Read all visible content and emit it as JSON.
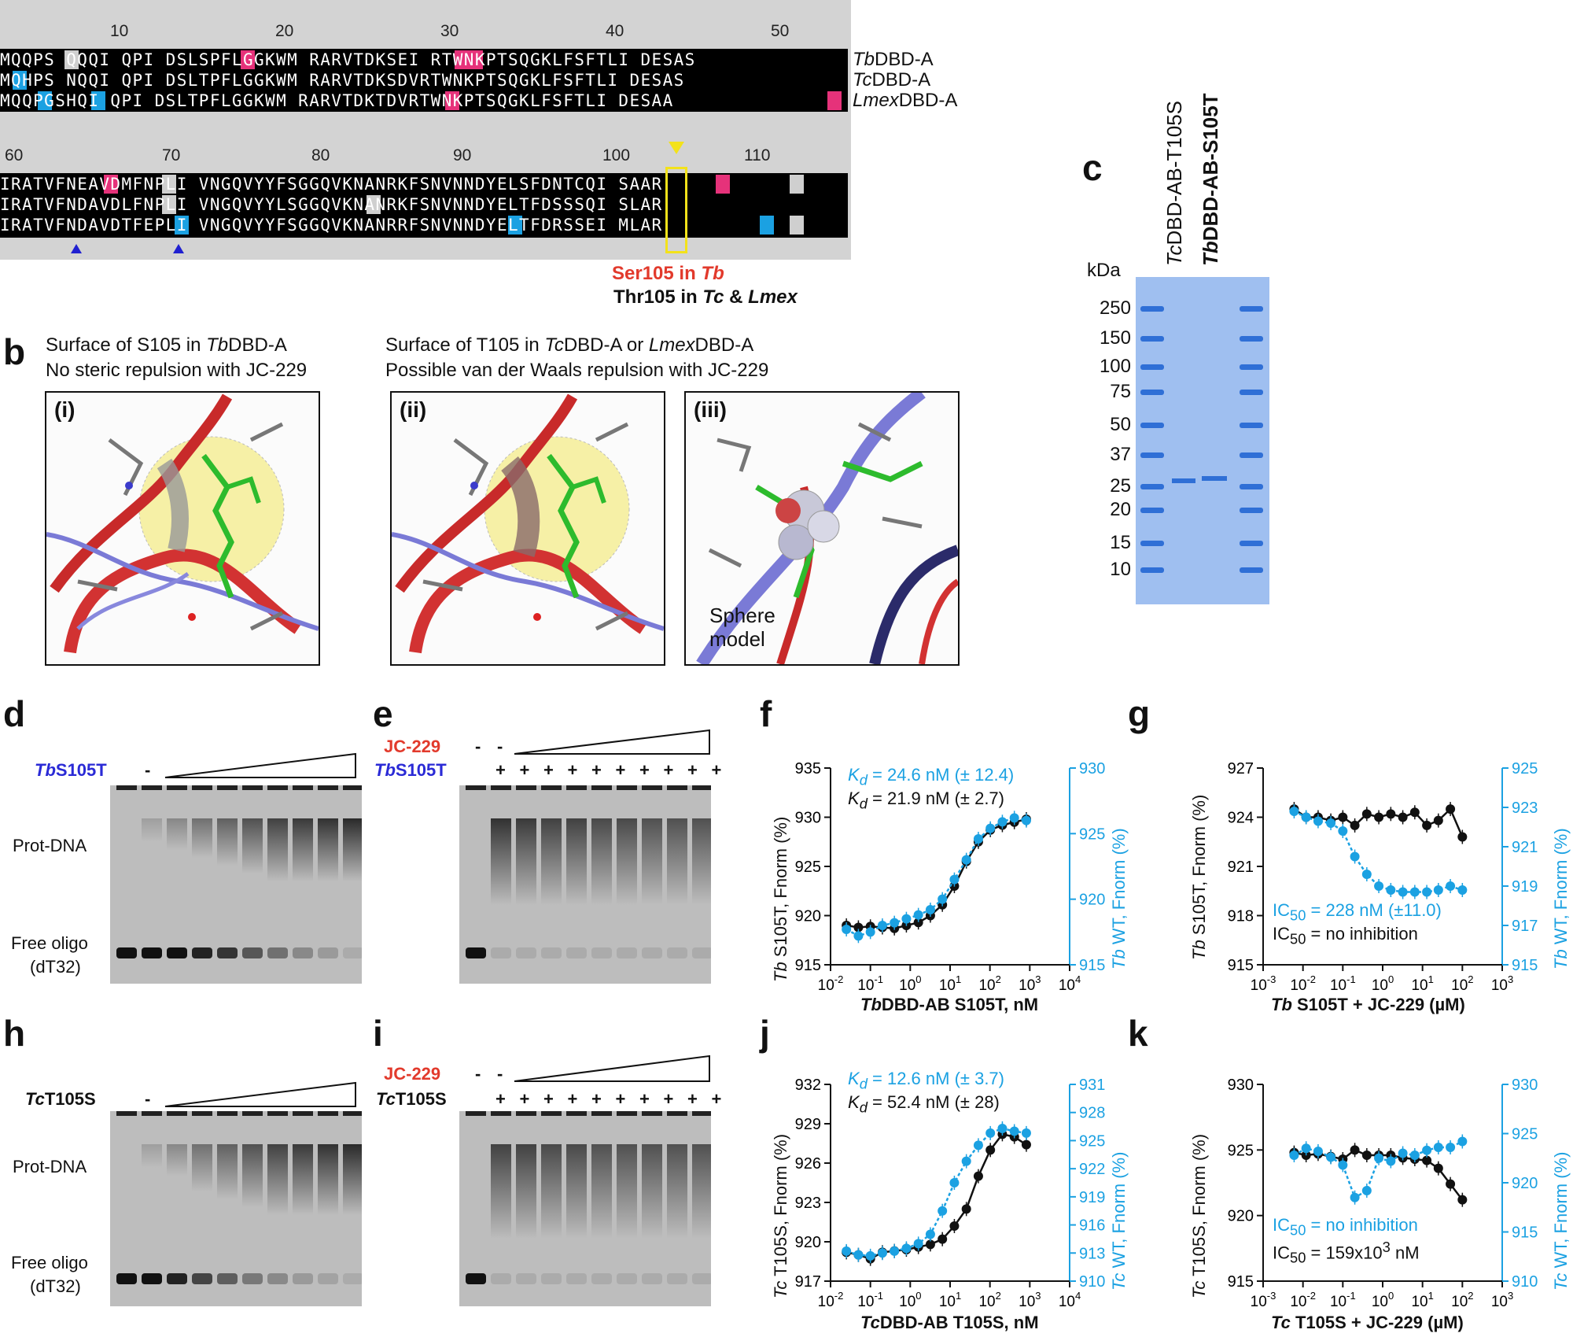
{
  "panel_labels": {
    "a": "a",
    "b": "b",
    "c": "c",
    "d": "d",
    "e": "e",
    "f": "f",
    "g": "g",
    "h": "h",
    "i": "i",
    "j": "j",
    "k": "k"
  },
  "panel_a": {
    "ruler_top": [
      "10",
      "20",
      "30",
      "40",
      "50"
    ],
    "ruler_bottom": [
      "60",
      "70",
      "80",
      "90",
      "100",
      "110"
    ],
    "block1": [
      {
        "seq": "MQQPS QQQI QPI DSLSPFLGGKWM RARVTDKSEI RTWNKPTSQGKLFSFTLI DESAS",
        "name_italic": "Tb",
        "name_rest": "DBD-A"
      },
      {
        "seq": "MQHPS NQQI QPI DSLTPFLGGKWM RARVTDKSDVRTWNKPTSQGKLFSFTLI DESAS",
        "name_italic": "Tc",
        "name_rest": "DBD-A"
      },
      {
        "seq": "MQQPGSHQI QPI DSLTPFLGGKWM RARVTDKTDVRTWNKPTSQGKLFSFTLI DESAA",
        "name_italic": "Lmex",
        "name_rest": "DBD-A"
      }
    ],
    "block2": [
      {
        "seq": "IRATVFNEAVDMFNPLI VNGQVYYFSGGQVKNANRKFSNVNNDYELSFDNTCQI SAAR"
      },
      {
        "seq": "IRATVFNDAVDLFNPLI VNGQVYYLSGGQVKNANRKFSNVNNDYELTFDSSSQI SLAR"
      },
      {
        "seq": "IRATVFNDAVDTFEPLI VNGQVYYFSGGQVKNANRRFSNVNNDYELTFDRSSEI MLAR"
      }
    ],
    "ser_label": "Ser105 in ",
    "ser_tb": "Tb",
    "thr_label": "Thr105 in ",
    "thr_tc": "Tc",
    "thr_amp": " & ",
    "thr_lmex": "Lmex"
  },
  "panel_b": {
    "cap1_line1_pre": "Surface of S105 in ",
    "cap1_line1_it": "Tb",
    "cap1_line1_post": "DBD-A",
    "cap1_line2": "No steric repulsion with JC-229",
    "cap2_line1_pre": "Surface of T105 in ",
    "cap2_line1_it1": "Tc",
    "cap2_line1_mid": "DBD-A or ",
    "cap2_line1_it2": "Lmex",
    "cap2_line1_post": "DBD-A",
    "cap2_line2": "Possible van der Waals repulsion with JC-229",
    "sub_i": "(i)",
    "sub_ii": "(ii)",
    "sub_iii": "(iii)",
    "sphere_1": "Sphere",
    "sphere_2": "model"
  },
  "panel_c": {
    "lane1_it": "Tc",
    "lane1_rest": "DBD-AB-T105S",
    "lane2_it": "Tb",
    "lane2_rest": "DBD-AB-S105T",
    "kda": "kDa",
    "markers": [
      "250",
      "150",
      "100",
      "75",
      "50",
      "37",
      "25",
      "20",
      "15",
      "10"
    ]
  },
  "panel_d": {
    "protein_it": "Tb",
    "protein_rest": "S105T",
    "dash": "-",
    "prot_dna": "Prot-DNA",
    "free1": "Free oligo",
    "free2": "(dT32)"
  },
  "panel_e": {
    "compound": "JC-229",
    "protein_it": "Tb",
    "protein_rest": "S105T",
    "dash": "-",
    "plus": "+"
  },
  "panel_h": {
    "protein_it": "Tc",
    "protein_rest": "T105S",
    "dash": "-",
    "prot_dna": "Prot-DNA",
    "free1": "Free oligo",
    "free2": "(dT32)"
  },
  "panel_i": {
    "compound": "JC-229",
    "protein_it": "Tc",
    "protein_rest": "T105S",
    "dash": "-",
    "plus": "+"
  },
  "panel_f": {
    "kd_blue_k": "K",
    "kd_blue_d": "d",
    "kd_blue_val": " = 24.6 nM (± 12.4)",
    "kd_black_k": "K",
    "kd_black_d": "d",
    "kd_black_val": " = 21.9 nM (± 2.7)",
    "ylabel_left_it": "Tb",
    "ylabel_left_rest": " S105T, Fnorm (%)",
    "ylabel_right_it": "Tb",
    "ylabel_right_rest": " WT, Fnorm (%)",
    "xlabel_it": "Tb",
    "xlabel_rest": "DBD-AB S105T, nM"
  },
  "panel_g": {
    "ic_blue": "IC",
    "ic_blue_sub": "50",
    "ic_blue_val": " = 228 nM (±11.0)",
    "ic_black": "IC",
    "ic_black_sub": "50",
    "ic_black_val": " = no inhibition",
    "ylabel_left_it": "Tb",
    "ylabel_left_rest": " S105T, Fnorm (%)",
    "ylabel_right_it": "Tb",
    "ylabel_right_rest": " WT, Fnorm (%)",
    "xlabel_it": "Tb",
    "xlabel_rest": " S105T + JC-229 (µM)"
  },
  "panel_j": {
    "kd_blue_k": "K",
    "kd_blue_d": "d",
    "kd_blue_val": " = 12.6 nM (± 3.7)",
    "kd_black_k": "K",
    "kd_black_d": "d",
    "kd_black_val": " = 52.4 nM (± 28)",
    "ylabel_left_it": "Tc",
    "ylabel_left_rest": " T105S, Fnorm (%)",
    "ylabel_right_it": "Tc",
    "ylabel_right_rest": " WT, Fnorm (%)",
    "xlabel_it": "Tc",
    "xlabel_rest": "DBD-AB T105S, nM"
  },
  "panel_k": {
    "ic_blue": "IC",
    "ic_blue_sub": "50",
    "ic_blue_val": " = no inhibition",
    "ic_black": "IC",
    "ic_black_sub": "50",
    "ic_black_val": " = 159x10",
    "ic_black_sup": "3",
    "ic_black_unit": " nM",
    "ylabel_left_it": "Tc",
    "ylabel_left_rest": " T105S, Fnorm (%)",
    "ylabel_right_it": "Tc",
    "ylabel_right_rest": " WT, Fnorm (%)",
    "xlabel_it": "Tc",
    "xlabel_rest": " T105S + JC-229 (µM)"
  },
  "colors": {
    "blue": "#1ba1e2",
    "black": "#111111",
    "pink": "#e6327a",
    "cyan": "#1ba1e2",
    "red": "#e23a2c",
    "navy": "#2a2ad6",
    "gel_blue": "#2f6fd6"
  },
  "chart_data": [
    {
      "id": "f",
      "type": "scatter",
      "title": "",
      "xscale": "log",
      "xlim": [
        0.01,
        10000
      ],
      "xticks": [
        "10-2",
        "10-1",
        "100",
        "101",
        "102",
        "103",
        "104"
      ],
      "ylim_left": [
        915,
        935
      ],
      "yticks_left": [
        "915",
        "920",
        "925",
        "930",
        "935"
      ],
      "ylim_right": [
        915,
        930
      ],
      "yticks_right": [
        "915",
        "920",
        "925",
        "930"
      ],
      "series": [
        {
          "name": "Tb S105T",
          "axis": "left",
          "color": "#111111",
          "x": [
            0.025,
            0.05,
            0.1,
            0.2,
            0.4,
            0.8,
            1.6,
            3.2,
            6.4,
            12.8,
            25.6,
            51.2,
            102.4,
            204.8,
            409.6,
            819.2
          ],
          "y": [
            919.0,
            918.8,
            918.9,
            918.8,
            918.7,
            919.0,
            919.3,
            920.0,
            921.1,
            923.0,
            925.5,
            927.5,
            928.7,
            929.2,
            929.5,
            929.8
          ]
        },
        {
          "name": "Tb WT",
          "axis": "right",
          "color": "#1ba1e2",
          "x": [
            0.025,
            0.05,
            0.1,
            0.2,
            0.4,
            0.8,
            1.6,
            3.2,
            6.4,
            12.8,
            25.6,
            51.2,
            102.4,
            204.8,
            409.6,
            819.2
          ],
          "y": [
            917.7,
            917.2,
            917.5,
            918.0,
            918.2,
            918.5,
            918.8,
            919.2,
            920.0,
            921.5,
            923.0,
            924.6,
            925.4,
            925.9,
            926.2,
            926.0
          ]
        }
      ]
    },
    {
      "id": "g",
      "type": "scatter",
      "title": "",
      "xscale": "log",
      "xlim": [
        0.001,
        1000
      ],
      "xticks": [
        "10-3",
        "10-2",
        "10-1",
        "100",
        "101",
        "102",
        "103"
      ],
      "ylim_left": [
        915,
        927
      ],
      "yticks_left": [
        "915",
        "918",
        "921",
        "924",
        "927"
      ],
      "ylim_right": [
        915,
        925
      ],
      "yticks_right": [
        "915",
        "917",
        "919",
        "921",
        "923",
        "925"
      ],
      "series": [
        {
          "name": "Tb S105T",
          "axis": "left",
          "color": "#111111",
          "x": [
            0.006,
            0.012,
            0.024,
            0.05,
            0.1,
            0.2,
            0.4,
            0.8,
            1.6,
            3.2,
            6.4,
            12.8,
            25,
            50,
            100
          ],
          "y": [
            924.5,
            924.0,
            924.0,
            923.8,
            924.0,
            923.5,
            924.2,
            924.0,
            924.2,
            924.0,
            924.3,
            923.5,
            923.8,
            924.5,
            922.8
          ]
        },
        {
          "name": "Tb WT",
          "axis": "right",
          "color": "#1ba1e2",
          "x": [
            0.006,
            0.012,
            0.024,
            0.05,
            0.1,
            0.2,
            0.4,
            0.8,
            1.6,
            3.2,
            6.4,
            12.8,
            25,
            50,
            100
          ],
          "y": [
            922.8,
            922.5,
            922.3,
            922.2,
            921.8,
            920.5,
            919.6,
            919.0,
            918.8,
            918.7,
            918.7,
            918.7,
            918.8,
            919.0,
            918.8
          ]
        }
      ]
    },
    {
      "id": "j",
      "type": "scatter",
      "title": "",
      "xscale": "log",
      "xlim": [
        0.01,
        10000
      ],
      "xticks": [
        "10-2",
        "10-1",
        "100",
        "101",
        "102",
        "103",
        "104"
      ],
      "ylim_left": [
        917,
        932
      ],
      "yticks_left": [
        "917",
        "920",
        "923",
        "926",
        "929",
        "932"
      ],
      "ylim_right": [
        910,
        931
      ],
      "yticks_right": [
        "910",
        "913",
        "916",
        "919",
        "922",
        "925",
        "928",
        "931"
      ],
      "series": [
        {
          "name": "Tc T105S",
          "axis": "left",
          "color": "#111111",
          "x": [
            0.025,
            0.05,
            0.1,
            0.2,
            0.4,
            0.8,
            1.6,
            3.2,
            6.4,
            12.8,
            25.6,
            51.2,
            102.4,
            204.8,
            409.6,
            819.2
          ],
          "y": [
            919.2,
            919.0,
            918.7,
            919.2,
            919.3,
            919.4,
            919.6,
            919.8,
            920.2,
            921.2,
            922.5,
            925.0,
            927.0,
            928.2,
            928.0,
            927.4
          ]
        },
        {
          "name": "Tc WT",
          "axis": "right",
          "color": "#1ba1e2",
          "x": [
            0.025,
            0.05,
            0.1,
            0.2,
            0.4,
            0.8,
            1.6,
            3.2,
            6.4,
            12.8,
            25.6,
            51.2,
            102.4,
            204.8,
            409.6,
            819.2
          ],
          "y": [
            913.2,
            912.8,
            912.7,
            913.0,
            913.2,
            913.5,
            914.0,
            915.0,
            917.5,
            920.5,
            922.8,
            924.5,
            925.8,
            926.3,
            926.0,
            925.8
          ]
        }
      ]
    },
    {
      "id": "k",
      "type": "scatter",
      "title": "",
      "xscale": "log",
      "xlim": [
        0.001,
        1000
      ],
      "xticks": [
        "10-3",
        "10-2",
        "10-1",
        "100",
        "101",
        "102",
        "103"
      ],
      "ylim_left": [
        915,
        930
      ],
      "yticks_left": [
        "915",
        "920",
        "925",
        "930"
      ],
      "ylim_right": [
        910,
        930
      ],
      "yticks_right": [
        "910",
        "915",
        "920",
        "925",
        "930"
      ],
      "series": [
        {
          "name": "Tc T105S",
          "axis": "left",
          "color": "#111111",
          "x": [
            0.006,
            0.012,
            0.024,
            0.05,
            0.1,
            0.2,
            0.4,
            0.8,
            1.6,
            3.2,
            6.4,
            12.8,
            25,
            50,
            100
          ],
          "y": [
            924.8,
            924.6,
            924.7,
            924.5,
            924.3,
            925.0,
            924.6,
            924.6,
            924.6,
            924.4,
            924.3,
            924.2,
            923.6,
            922.4,
            921.2
          ]
        },
        {
          "name": "Tc WT",
          "axis": "right",
          "color": "#1ba1e2",
          "x": [
            0.006,
            0.012,
            0.024,
            0.05,
            0.1,
            0.2,
            0.4,
            0.8,
            1.6,
            3.2,
            6.4,
            12.8,
            25,
            50,
            100
          ],
          "y": [
            922.8,
            923.5,
            923.2,
            922.6,
            921.8,
            918.5,
            919.2,
            922.5,
            922.2,
            923.0,
            922.8,
            923.3,
            923.6,
            923.6,
            924.2
          ]
        }
      ]
    }
  ]
}
